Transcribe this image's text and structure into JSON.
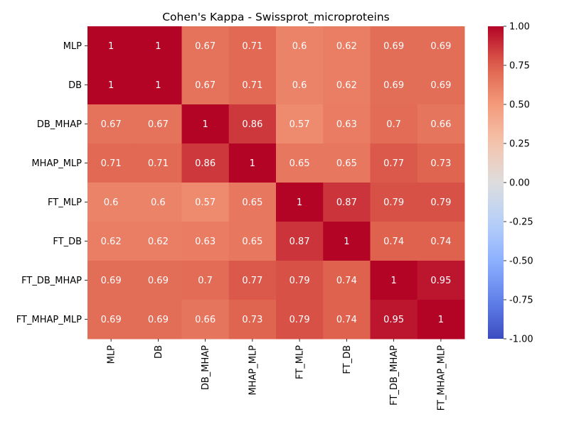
{
  "chart_data": {
    "type": "heatmap",
    "title": "Cohen's Kappa - Swissprot_microproteins",
    "row_labels": [
      "MLP",
      "DB",
      "DB_MHAP",
      "MHAP_MLP",
      "FT_MLP",
      "FT_DB",
      "FT_DB_MHAP",
      "FT_MHAP_MLP"
    ],
    "col_labels": [
      "MLP",
      "DB",
      "DB_MHAP",
      "MHAP_MLP",
      "FT_MLP",
      "FT_DB",
      "FT_DB_MHAP",
      "FT_MHAP_MLP"
    ],
    "values": [
      [
        1,
        1,
        0.67,
        0.71,
        0.6,
        0.62,
        0.69,
        0.69
      ],
      [
        1,
        1,
        0.67,
        0.71,
        0.6,
        0.62,
        0.69,
        0.69
      ],
      [
        0.67,
        0.67,
        1,
        0.86,
        0.57,
        0.63,
        0.7,
        0.66
      ],
      [
        0.71,
        0.71,
        0.86,
        1,
        0.65,
        0.65,
        0.77,
        0.73
      ],
      [
        0.6,
        0.6,
        0.57,
        0.65,
        1,
        0.87,
        0.79,
        0.79
      ],
      [
        0.62,
        0.62,
        0.63,
        0.65,
        0.87,
        1,
        0.74,
        0.74
      ],
      [
        0.69,
        0.69,
        0.7,
        0.77,
        0.79,
        0.74,
        1,
        0.95
      ],
      [
        0.69,
        0.69,
        0.66,
        0.73,
        0.79,
        0.74,
        0.95,
        1
      ]
    ],
    "colormap": "coolwarm",
    "vmin": -1.0,
    "vmax": 1.0,
    "colorbar_ticks": [
      "-1.00",
      "-0.75",
      "-0.50",
      "-0.25",
      "0.00",
      "0.25",
      "0.50",
      "0.75",
      "1.00"
    ],
    "annotations": true
  }
}
